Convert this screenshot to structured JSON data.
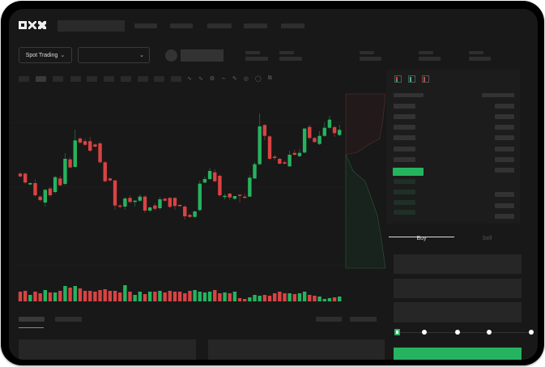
{
  "header": {
    "logo_text": "OKX"
  },
  "toolbar": {
    "market_selector_label": "Spot Trading",
    "market_selector_icon": "chevron-down-icon",
    "pair_dropdown_icon": "chevron-down-icon"
  },
  "trade_panel": {
    "tabs": [
      {
        "label": "Buy",
        "active": true
      },
      {
        "label": "Sell",
        "active": false
      }
    ],
    "slider_level_percent": 0,
    "slider_steps": 5
  },
  "colors": {
    "up": "#26b35f",
    "down": "#d94343",
    "background": "#181818",
    "accent_button": "#26b35f"
  },
  "chart_data": {
    "type": "candlestick",
    "title": "",
    "xlabel": "",
    "ylabel": "",
    "grid": true,
    "candles": [
      [
        96.7,
        98.5,
        92,
        93.3
      ],
      [
        96.7,
        98,
        84,
        85.7
      ],
      [
        83.3,
        86,
        82.5,
        85
      ],
      [
        85,
        90,
        68,
        70
      ],
      [
        68.3,
        70,
        62,
        64
      ],
      [
        61,
        78,
        56,
        76.7
      ],
      [
        78.3,
        80,
        68,
        70
      ],
      [
        74,
        94,
        72,
        92.3
      ],
      [
        90.7,
        94,
        81,
        82.3
      ],
      [
        84,
        122,
        82,
        115
      ],
      [
        114.3,
        117,
        103,
        104.3
      ],
      [
        105,
        151,
        104,
        137.7
      ],
      [
        140,
        142,
        133,
        135
      ],
      [
        136.7,
        140,
        131,
        132.3
      ],
      [
        136.7,
        142,
        123,
        125
      ],
      [
        132.7,
        134,
        129,
        130
      ],
      [
        134,
        136,
        109,
        110.7
      ],
      [
        110.7,
        112,
        86,
        87.3
      ],
      [
        90.7,
        92,
        87,
        88.3
      ],
      [
        88.3,
        89,
        52,
        57.3
      ],
      [
        57.3,
        59,
        54,
        55.7
      ],
      [
        56,
        68,
        52,
        66
      ],
      [
        66.7,
        70,
        60,
        61.7
      ],
      [
        61.7,
        64,
        56,
        63.3
      ],
      [
        63.3,
        71,
        62,
        68.3
      ],
      [
        68.3,
        70,
        48,
        51
      ],
      [
        51,
        56,
        49,
        55
      ],
      [
        57.3,
        60,
        51,
        53.3
      ],
      [
        54,
        68,
        52,
        65
      ],
      [
        65.7,
        67,
        62,
        63.3
      ],
      [
        66.7,
        68,
        54,
        55.7
      ],
      [
        66.7,
        68,
        52,
        56.7
      ],
      [
        58,
        59,
        56,
        57
      ],
      [
        56,
        58,
        40,
        44
      ],
      [
        45.7,
        47,
        42,
        43.3
      ],
      [
        43.3,
        51,
        42,
        50
      ],
      [
        51.7,
        88,
        50,
        84.3
      ],
      [
        85.7,
        93,
        85,
        90
      ],
      [
        90,
        104,
        89,
        100
      ],
      [
        98.3,
        102,
        86,
        87.3
      ],
      [
        94,
        96,
        68,
        70
      ],
      [
        68.3,
        72,
        65,
        69.3
      ],
      [
        72,
        73,
        64,
        67.3
      ],
      [
        65.7,
        69,
        64,
        69
      ],
      [
        70.7,
        71,
        61,
        69.3
      ],
      [
        68.3,
        72,
        66,
        66.7
      ],
      [
        68.3,
        95,
        68,
        91.7
      ],
      [
        90.7,
        111,
        90,
        108.3
      ],
      [
        108.3,
        171,
        107,
        155
      ],
      [
        156.7,
        158,
        138,
        143.3
      ],
      [
        142.7,
        144,
        113,
        115
      ],
      [
        117.7,
        120,
        113,
        116
      ],
      [
        115,
        116,
        108,
        109
      ],
      [
        110.7,
        113,
        108,
        109
      ],
      [
        105.7,
        125,
        105,
        120
      ],
      [
        122.3,
        126,
        119,
        120
      ],
      [
        118.3,
        127,
        117,
        122.3
      ],
      [
        122.7,
        153,
        122,
        152.3
      ],
      [
        154.3,
        157,
        139,
        140.7
      ],
      [
        140.7,
        142,
        135,
        135.7
      ],
      [
        133.3,
        149,
        132,
        143.3
      ],
      [
        143.3,
        160,
        142,
        153.3
      ],
      [
        153.3,
        168,
        152,
        163.3
      ],
      [
        154,
        156,
        142,
        146.7
      ],
      [
        144.3,
        157,
        143,
        150.7
      ]
    ],
    "volume": [
      12,
      13,
      8,
      12,
      10,
      14,
      11,
      11,
      13,
      19,
      17,
      19,
      16,
      13,
      13,
      12,
      14,
      15,
      13,
      13,
      11,
      20,
      12,
      8,
      12,
      9,
      12,
      12,
      13,
      11,
      13,
      12,
      12,
      10,
      13,
      14,
      12,
      11,
      12,
      14,
      10,
      11,
      10,
      12,
      4,
      3,
      5,
      8,
      7,
      8,
      7,
      10,
      12,
      10,
      10,
      9,
      10,
      12,
      8,
      7,
      6,
      3,
      4,
      5,
      6
    ]
  }
}
